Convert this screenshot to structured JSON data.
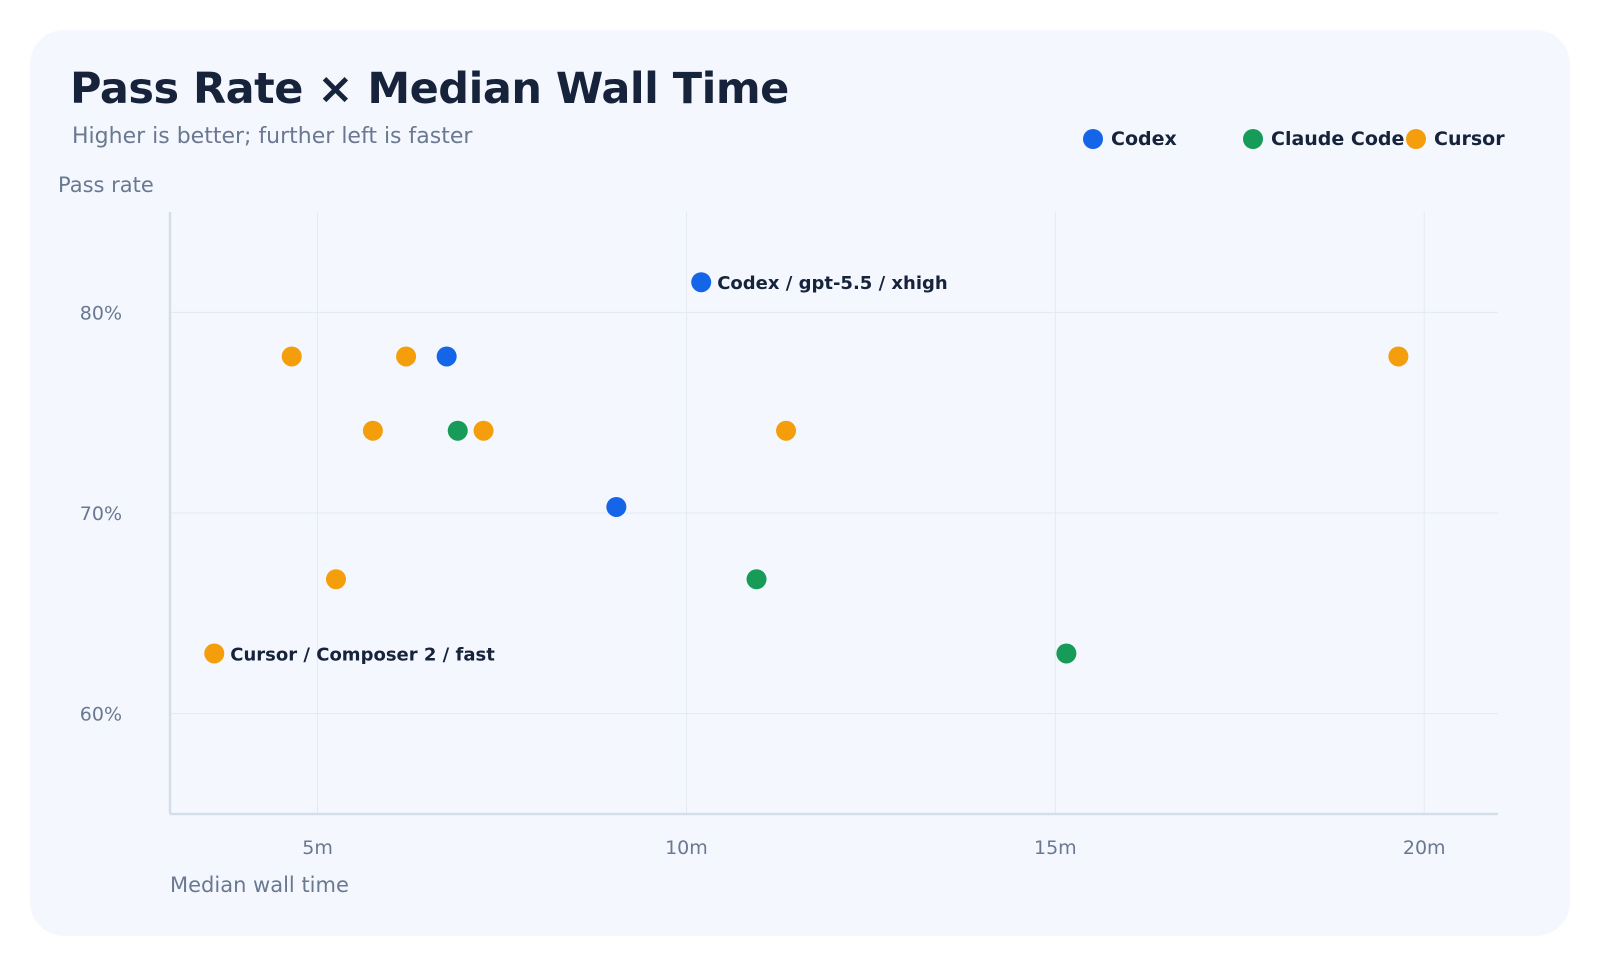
{
  "chart_data": {
    "type": "scatter",
    "title": "Pass Rate × Median Wall Time",
    "subtitle": "Higher is better; further left is faster",
    "xlabel": "Median wall time",
    "ylabel": "Pass rate",
    "xlim": [
      3,
      21
    ],
    "ylim": [
      55,
      85
    ],
    "x_ticks": [
      5,
      10,
      15,
      20
    ],
    "x_tick_labels": [
      "5m",
      "10m",
      "15m",
      "20m"
    ],
    "y_ticks": [
      60,
      70,
      80
    ],
    "y_tick_labels": [
      "60%",
      "70%",
      "80%"
    ],
    "grid": true,
    "legend_position": "top-right",
    "series": [
      {
        "name": "Codex",
        "color": "#1565e8",
        "points": [
          {
            "x": 10.2,
            "y": 81.5,
            "label": "Codex / gpt-5.5 / xhigh"
          },
          {
            "x": 6.75,
            "y": 77.8
          },
          {
            "x": 9.05,
            "y": 70.3
          }
        ]
      },
      {
        "name": "Claude Code",
        "color": "#169b58",
        "points": [
          {
            "x": 6.9,
            "y": 74.1
          },
          {
            "x": 10.95,
            "y": 66.7
          },
          {
            "x": 15.15,
            "y": 63.0
          }
        ]
      },
      {
        "name": "Cursor",
        "color": "#f59e0b",
        "points": [
          {
            "x": 4.65,
            "y": 77.8
          },
          {
            "x": 6.2,
            "y": 77.8
          },
          {
            "x": 5.75,
            "y": 74.1
          },
          {
            "x": 7.25,
            "y": 74.1
          },
          {
            "x": 11.35,
            "y": 74.1
          },
          {
            "x": 19.65,
            "y": 77.8
          },
          {
            "x": 5.25,
            "y": 66.7
          },
          {
            "x": 3.6,
            "y": 63.0,
            "label": "Cursor / Composer 2 / fast"
          }
        ]
      }
    ]
  }
}
